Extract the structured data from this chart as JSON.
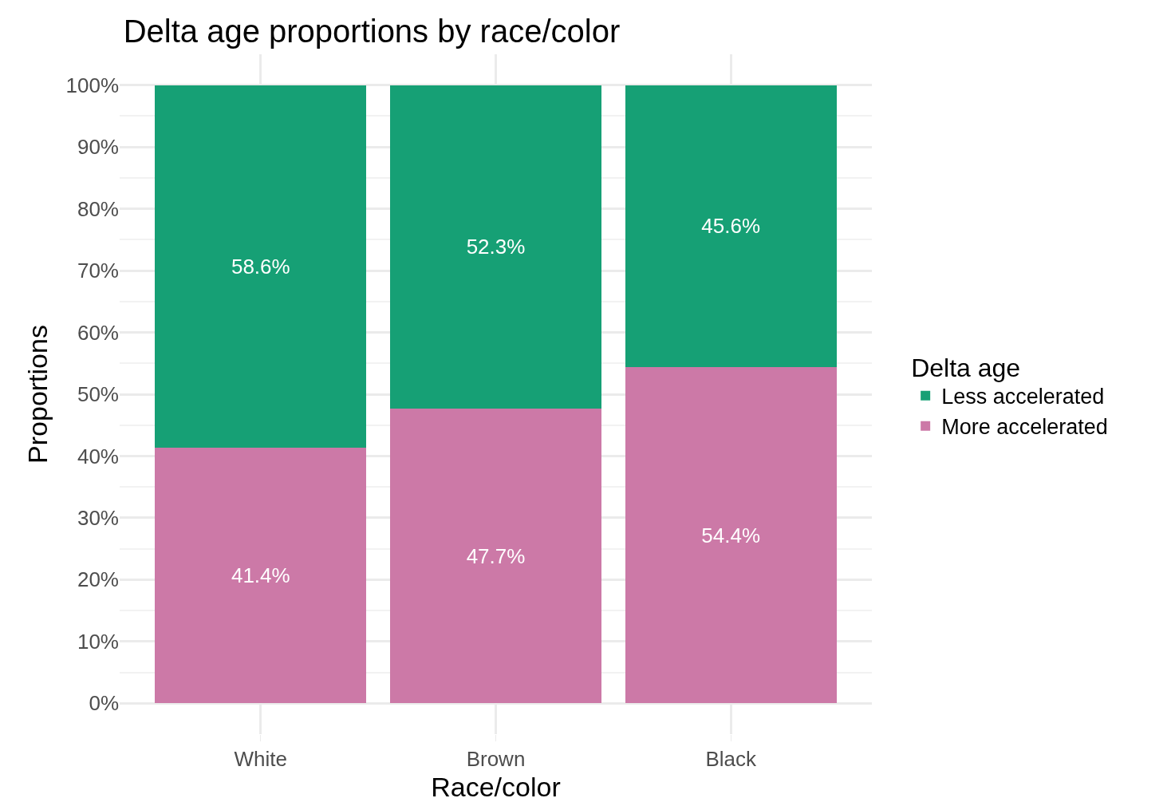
{
  "chart_data": {
    "type": "bar",
    "title": "Delta age proportions by race/color",
    "xlabel": "Race/color",
    "ylabel": "Proportions",
    "legend_title": "Delta age",
    "categories": [
      "White",
      "Brown",
      "Black"
    ],
    "stacked": true,
    "series": [
      {
        "name": "More accelerated",
        "color": "#cc79a7",
        "values": [
          41.4,
          47.7,
          54.4
        ],
        "value_labels": [
          "41.4%",
          "47.7%",
          "54.4%"
        ]
      },
      {
        "name": "Less accelerated",
        "color": "#16a075",
        "values": [
          58.6,
          52.3,
          45.6
        ],
        "value_labels": [
          "58.6%",
          "52.3%",
          "45.6%"
        ]
      }
    ],
    "ylim": [
      -5,
      105
    ],
    "yticks": [
      {
        "value": 0,
        "label": "0%"
      },
      {
        "value": 10,
        "label": "10%"
      },
      {
        "value": 20,
        "label": "20%"
      },
      {
        "value": 30,
        "label": "30%"
      },
      {
        "value": 40,
        "label": "40%"
      },
      {
        "value": 50,
        "label": "50%"
      },
      {
        "value": 60,
        "label": "60%"
      },
      {
        "value": 70,
        "label": "70%"
      },
      {
        "value": 80,
        "label": "80%"
      },
      {
        "value": 90,
        "label": "90%"
      },
      {
        "value": 100,
        "label": "100%"
      }
    ],
    "grid": true,
    "legend": "right"
  }
}
